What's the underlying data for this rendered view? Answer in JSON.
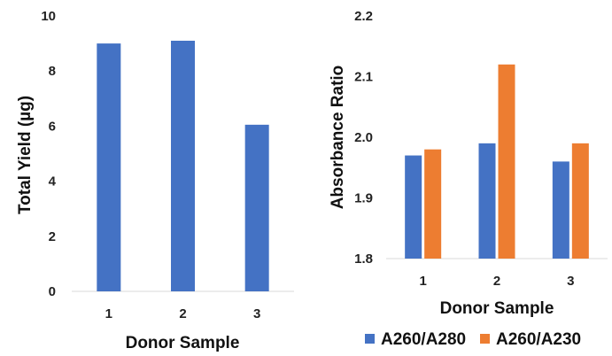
{
  "chart_data": [
    {
      "type": "bar",
      "categories": [
        "1",
        "2",
        "3"
      ],
      "series": [
        {
          "values": [
            9.0,
            9.1,
            6.05
          ],
          "color": "#4472C4"
        }
      ],
      "yticks": [
        "0",
        "2",
        "4",
        "6",
        "8",
        "10"
      ],
      "xlabel": "Donor Sample",
      "ylabel": "Total Yield (µg)",
      "ylim": [
        0,
        10
      ],
      "grid": false,
      "legend": "none"
    },
    {
      "type": "bar",
      "categories": [
        "1",
        "2",
        "3"
      ],
      "series": [
        {
          "name": "A260/A280",
          "values": [
            1.97,
            1.99,
            1.96
          ],
          "color": "#4472C4"
        },
        {
          "name": "A260/A230",
          "values": [
            1.98,
            2.12,
            1.99
          ],
          "color": "#ED7D31"
        }
      ],
      "yticks": [
        "1.8",
        "1.9",
        "2.0",
        "2.1",
        "2.2"
      ],
      "xlabel": "Donor Sample",
      "ylabel": "Absorbance Ratio",
      "ylim": [
        1.8,
        2.2
      ],
      "grid": false,
      "legend": "bottom"
    }
  ]
}
